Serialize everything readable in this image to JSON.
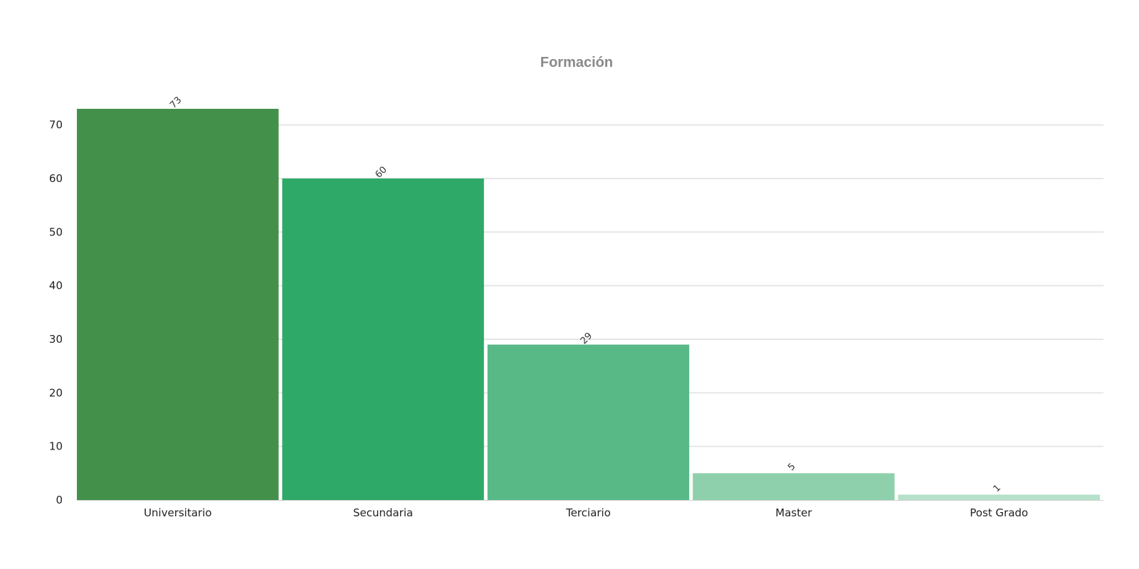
{
  "chart_data": {
    "type": "bar",
    "title": "Formación",
    "xlabel": "",
    "ylabel": "",
    "categories": [
      "Universitario",
      "Secundaria",
      "Terciario",
      "Master",
      "Post Grado"
    ],
    "values": [
      73,
      60,
      29,
      5,
      1
    ],
    "data_labels": [
      "73",
      "60",
      "29",
      "5",
      "1"
    ],
    "colors": [
      "#43904b",
      "#2ea968",
      "#58b987",
      "#8ed0ac",
      "#b5e0c9"
    ],
    "ylim": [
      0,
      73
    ],
    "yticks": [
      0,
      10,
      20,
      30,
      40,
      50,
      60,
      70
    ],
    "grid": true,
    "legend": "none"
  }
}
